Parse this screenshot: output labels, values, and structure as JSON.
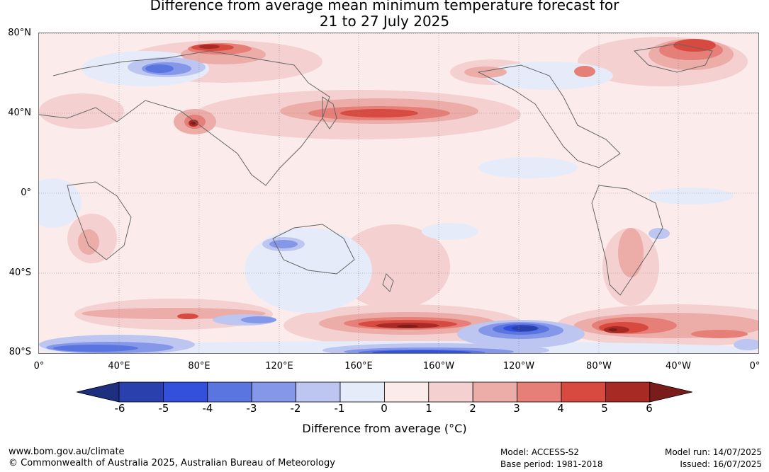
{
  "title": {
    "line1": "Difference from average mean minimum temperature forecast for",
    "line2": "21 to 27 July 2025"
  },
  "map": {
    "lat_labels": [
      "80°N",
      "40°N",
      "0°",
      "40°S",
      "80°S"
    ],
    "lon_labels": [
      "0°",
      "40°E",
      "80°E",
      "120°E",
      "160°E",
      "160°W",
      "120°W",
      "80°W",
      "40°W",
      "0°"
    ]
  },
  "colorbar": {
    "ticks": [
      "-6",
      "-5",
      "-4",
      "-3",
      "-2",
      "-1",
      "0",
      "1",
      "2",
      "3",
      "4",
      "5",
      "6"
    ],
    "colors": {
      "below_min": "#1d2f7e",
      "bins": [
        "#2a40ad",
        "#3350dd",
        "#5a74e0",
        "#8497e8",
        "#bcc6f1",
        "#e6ebfa",
        "#fbeceb",
        "#f4d0d0",
        "#ecaca7",
        "#e67f78",
        "#d84a40",
        "#a82a25"
      ],
      "above_max": "#7a1c19"
    },
    "label": "Difference from average (°C)"
  },
  "footer": {
    "left_line1": "www.bom.gov.au/climate",
    "left_line2": "© Commonwealth of Australia 2025, Australian Bureau of Meteorology",
    "model": "Model: ACCESS-S2",
    "base_period": "Base period: 1981-2018",
    "model_run": "Model run: 14/07/2025",
    "issued": "Issued: 16/07/2025"
  }
}
